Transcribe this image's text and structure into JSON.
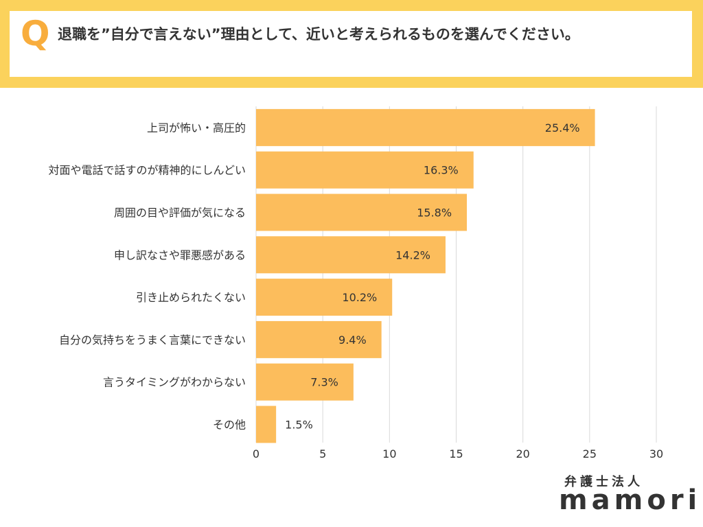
{
  "header": {
    "q_label": "Q",
    "question": "退職を”自分で言えない”理由として、近いと考えられるものを選んでください。"
  },
  "colors": {
    "header_band": "#fbd25c",
    "q_icon": "#f8ad3d",
    "bar": "#fcbd5c",
    "grid": "#d9d9d9"
  },
  "chart_data": {
    "type": "bar",
    "orientation": "horizontal",
    "categories": [
      "上司が怖い・高圧的",
      "対面や電話で話すのが精神的にしんどい",
      "周囲の目や評価が気になる",
      "申し訳なさや罪悪感がある",
      "引き止められたくない",
      "自分の気持ちをうまく言葉にできない",
      "言うタイミングがわからない",
      "その他"
    ],
    "values": [
      25.4,
      16.3,
      15.8,
      14.2,
      10.2,
      9.4,
      7.3,
      1.5
    ],
    "value_labels": [
      "25.4%",
      "16.3%",
      "15.8%",
      "14.2%",
      "10.2%",
      "9.4%",
      "7.3%",
      "1.5%"
    ],
    "xlim": [
      0,
      30
    ],
    "xticks": [
      0,
      5,
      10,
      15,
      20,
      25,
      30
    ],
    "grid": true,
    "xlabel": "",
    "ylabel": ""
  },
  "logo": {
    "top": "弁護士法人",
    "main": "mamori"
  }
}
